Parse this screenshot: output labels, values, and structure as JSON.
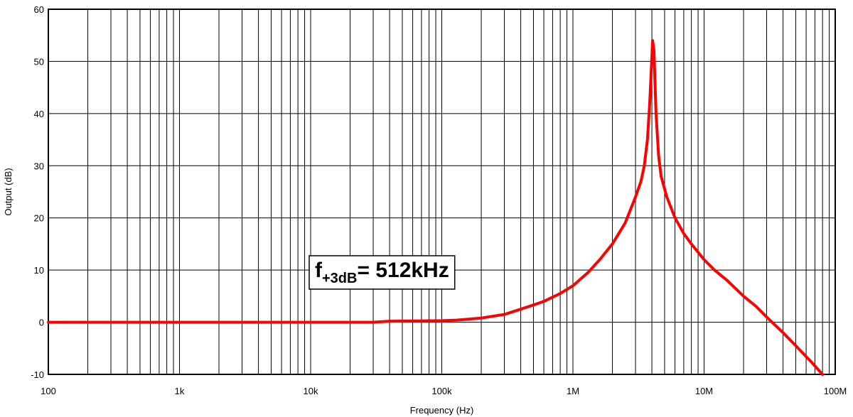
{
  "chart_data": {
    "type": "line",
    "xlabel": "Frequency (Hz)",
    "ylabel": "Output (dB)",
    "x_scale": "log",
    "xlim": [
      100,
      100000000
    ],
    "ylim": [
      -10,
      60
    ],
    "grid": true,
    "x_ticks": [
      {
        "value": 100,
        "label": "100"
      },
      {
        "value": 1000,
        "label": "1k"
      },
      {
        "value": 10000,
        "label": "10k"
      },
      {
        "value": 100000,
        "label": "100k"
      },
      {
        "value": 1000000,
        "label": "1M"
      },
      {
        "value": 10000000,
        "label": "10M"
      },
      {
        "value": 100000000,
        "label": "100M"
      }
    ],
    "y_ticks": [
      {
        "value": -10,
        "label": "-10"
      },
      {
        "value": 0,
        "label": "0"
      },
      {
        "value": 10,
        "label": "10"
      },
      {
        "value": 20,
        "label": "20"
      },
      {
        "value": 30,
        "label": "30"
      },
      {
        "value": 40,
        "label": "40"
      },
      {
        "value": 50,
        "label": "50"
      },
      {
        "value": 60,
        "label": "60"
      }
    ],
    "series": [
      {
        "color": "#ff0000",
        "points": [
          [
            100,
            0
          ],
          [
            1000,
            0
          ],
          [
            10000,
            0
          ],
          [
            30000,
            0
          ],
          [
            40000,
            0.2
          ],
          [
            100000,
            0.3
          ],
          [
            130000,
            0.4
          ],
          [
            200000,
            0.8
          ],
          [
            300000,
            1.5
          ],
          [
            400000,
            2.5
          ],
          [
            500000,
            3.3
          ],
          [
            600000,
            4.0
          ],
          [
            800000,
            5.5
          ],
          [
            1000000,
            7.0
          ],
          [
            1300000,
            9.5
          ],
          [
            1600000,
            12.0
          ],
          [
            2000000,
            15.0
          ],
          [
            2500000,
            19.0
          ],
          [
            3000000,
            24.0
          ],
          [
            3300000,
            27.0
          ],
          [
            3500000,
            30.0
          ],
          [
            3700000,
            35.0
          ],
          [
            3850000,
            42.0
          ],
          [
            3950000,
            48.0
          ],
          [
            4050000,
            54.0
          ],
          [
            4150000,
            52.0
          ],
          [
            4300000,
            40.0
          ],
          [
            4500000,
            32.0
          ],
          [
            4700000,
            28.0
          ],
          [
            5200000,
            24.0
          ],
          [
            6000000,
            20.0
          ],
          [
            7000000,
            17.0
          ],
          [
            8000000,
            15.0
          ],
          [
            10000000,
            12.0
          ],
          [
            12000000,
            10.0
          ],
          [
            15000000,
            8.0
          ],
          [
            20000000,
            5.0
          ],
          [
            25000000,
            3.0
          ],
          [
            30000000,
            1.0
          ],
          [
            40000000,
            -2.0
          ],
          [
            50000000,
            -4.5
          ],
          [
            65000000,
            -7.5
          ],
          [
            80000000,
            -10.0
          ]
        ]
      }
    ],
    "annotation": {
      "main": "f",
      "subscript": "+3dB",
      "suffix": "= 512kHz"
    }
  }
}
